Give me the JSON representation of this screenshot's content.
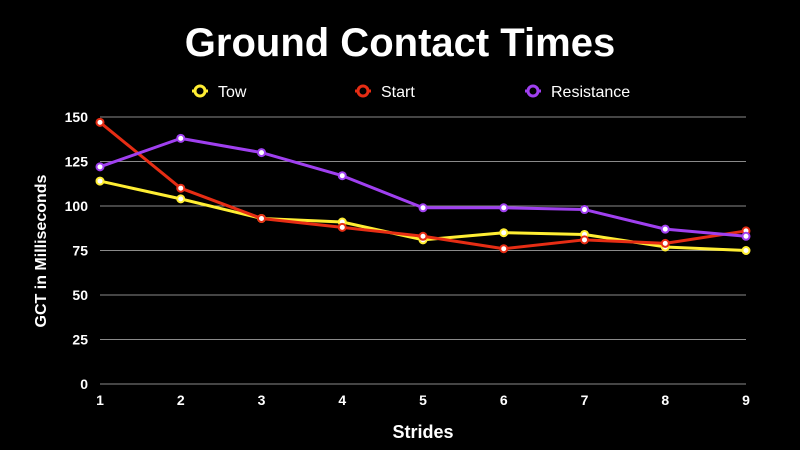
{
  "chart_data": {
    "type": "line",
    "title": "Ground Contact Times",
    "xlabel": "Strides",
    "ylabel": "GCT in Milliseconds",
    "x": [
      1,
      2,
      3,
      4,
      5,
      6,
      7,
      8,
      9
    ],
    "xticks": [
      "1",
      "2",
      "3",
      "4",
      "5",
      "6",
      "7",
      "8",
      "9"
    ],
    "yticks": [
      "0",
      "25",
      "50",
      "75",
      "100",
      "125",
      "150"
    ],
    "ylim": [
      0,
      150
    ],
    "grid": true,
    "legend_position": "top",
    "series": [
      {
        "name": "Tow",
        "color": "#ffee33",
        "values": [
          114,
          104,
          93,
          91,
          81,
          85,
          84,
          77,
          75
        ]
      },
      {
        "name": "Start",
        "color": "#e62d14",
        "values": [
          147,
          110,
          93,
          88,
          83,
          76,
          81,
          79,
          86
        ]
      },
      {
        "name": "Resistance",
        "color": "#a040f0",
        "values": [
          122,
          138,
          130,
          117,
          99,
          99,
          98,
          87,
          83
        ]
      }
    ]
  }
}
